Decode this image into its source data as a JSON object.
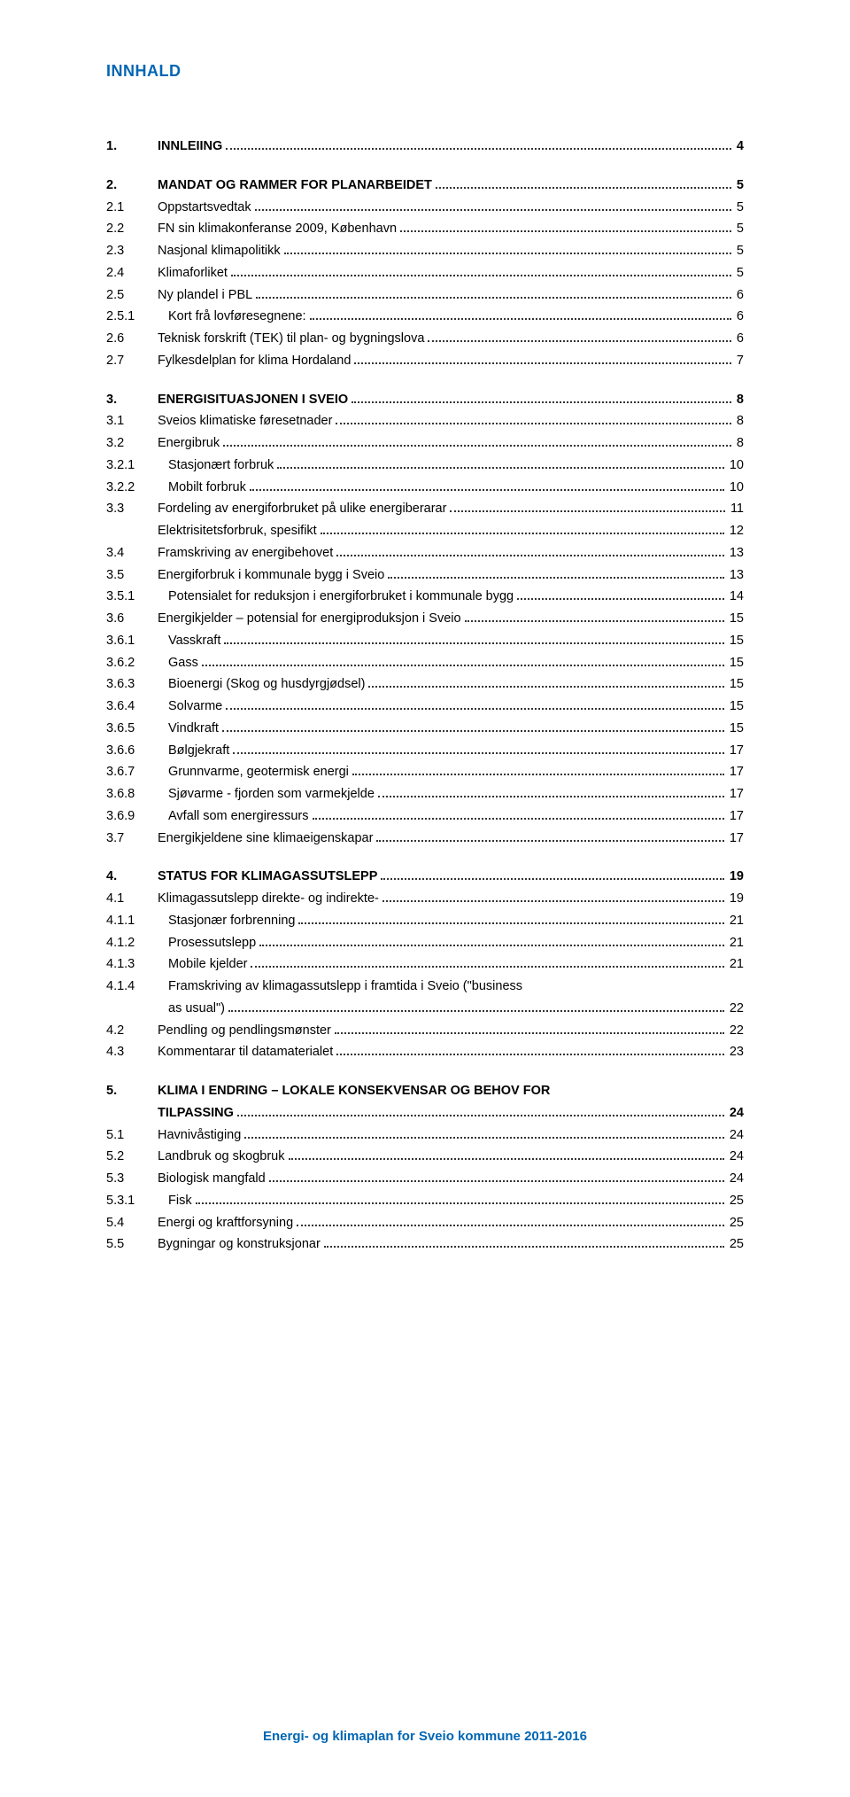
{
  "title": "INNHALD",
  "footer": "Energi- og klimaplan for Sveio kommune 2011-2016",
  "colors": {
    "accent": "#0066b3",
    "text": "#000000",
    "background": "#ffffff",
    "leader": "#333333"
  },
  "typography": {
    "title_fontsize_pt": 14,
    "body_fontsize_pt": 11,
    "footer_fontsize_pt": 11,
    "font_family": "Verdana"
  },
  "toc": [
    {
      "group": true,
      "items": [
        {
          "num": "1.",
          "title": "INNLEIING",
          "page": "4",
          "bold": true
        }
      ]
    },
    {
      "group": true,
      "items": [
        {
          "num": "2.",
          "title": "MANDAT OG RAMMER FOR PLANARBEIDET",
          "page": "5",
          "bold": true
        },
        {
          "num": "2.1",
          "title": "Oppstartsvedtak",
          "page": "5"
        },
        {
          "num": "2.2",
          "title": "FN sin klimakonferanse 2009, København",
          "page": "5"
        },
        {
          "num": "2.3",
          "title": "Nasjonal klimapolitikk",
          "page": "5"
        },
        {
          "num": "2.4",
          "title": "Klimaforliket",
          "page": "5"
        },
        {
          "num": "2.5",
          "title": "Ny plandel i PBL",
          "page": "6"
        },
        {
          "num": "2.5.1",
          "title": "Kort frå lovføresegnene:",
          "page": "6",
          "indent": true
        },
        {
          "num": "2.6",
          "title": "Teknisk forskrift (TEK) til plan- og bygningslova",
          "page": "6"
        },
        {
          "num": "2.7",
          "title": "Fylkesdelplan for klima Hordaland",
          "page": "7"
        }
      ]
    },
    {
      "group": true,
      "items": [
        {
          "num": "3.",
          "title": "ENERGISITUASJONEN I SVEIO",
          "page": "8",
          "bold": true
        },
        {
          "num": "3.1",
          "title": "Sveios klimatiske føresetnader",
          "page": "8"
        },
        {
          "num": "3.2",
          "title": "Energibruk",
          "page": "8"
        },
        {
          "num": "3.2.1",
          "title": "Stasjonært forbruk",
          "page": "10",
          "indent": true
        },
        {
          "num": "3.2.2",
          "title": "Mobilt forbruk",
          "page": "10",
          "indent": true
        },
        {
          "num": "3.3",
          "title": "Fordeling av energiforbruket på ulike energiberarar",
          "page": "11"
        },
        {
          "num": "",
          "title": "Elektrisitetsforbruk, spesifikt",
          "page": "12",
          "cont": true
        },
        {
          "num": "3.4",
          "title": "Framskriving av energibehovet",
          "page": "13"
        },
        {
          "num": "3.5",
          "title": "Energiforbruk i kommunale bygg i Sveio",
          "page": "13"
        },
        {
          "num": "3.5.1",
          "title": "Potensialet for reduksjon i energiforbruket i kommunale bygg",
          "page": "14",
          "indent": true
        },
        {
          "num": "3.6",
          "title": "Energikjelder – potensial for energiproduksjon i Sveio",
          "page": "15"
        },
        {
          "num": "3.6.1",
          "title": "Vasskraft",
          "page": "15",
          "indent": true
        },
        {
          "num": "3.6.2",
          "title": "Gass",
          "page": "15",
          "indent": true
        },
        {
          "num": "3.6.3",
          "title": "Bioenergi (Skog og husdyrgjødsel)",
          "page": "15",
          "indent": true
        },
        {
          "num": "3.6.4",
          "title": "Solvarme",
          "page": "15",
          "indent": true
        },
        {
          "num": "3.6.5",
          "title": "Vindkraft",
          "page": "15",
          "indent": true
        },
        {
          "num": "3.6.6",
          "title": "Bølgjekraft",
          "page": "17",
          "indent": true
        },
        {
          "num": "3.6.7",
          "title": "Grunnvarme, geotermisk energi",
          "page": "17",
          "indent": true
        },
        {
          "num": "3.6.8",
          "title": "Sjøvarme - fjorden som varmekjelde",
          "page": "17",
          "indent": true
        },
        {
          "num": "3.6.9",
          "title": "Avfall som energiressurs",
          "page": "17",
          "indent": true
        },
        {
          "num": "3.7",
          "title": "Energikjeldene sine klimaeigenskapar",
          "page": "17"
        }
      ]
    },
    {
      "group": true,
      "items": [
        {
          "num": "4.",
          "title": "STATUS FOR KLIMAGASSUTSLEPP",
          "page": "19",
          "bold": true
        },
        {
          "num": "4.1",
          "title": "Klimagassutslepp direkte- og indirekte-",
          "page": "19"
        },
        {
          "num": "4.1.1",
          "title": "Stasjonær forbrenning",
          "page": "21",
          "indent": true
        },
        {
          "num": "4.1.2",
          "title": "Prosessutslepp",
          "page": "21",
          "indent": true
        },
        {
          "num": "4.1.3",
          "title": "Mobile kjelder",
          "page": "21",
          "indent": true
        },
        {
          "num": "4.1.4",
          "title": "Framskriving av klimagassutslepp i framtida i Sveio (\"business",
          "indent": true,
          "noleader": true
        },
        {
          "num": "",
          "title": "as usual\")",
          "page": "22",
          "cont": true,
          "indent": true
        },
        {
          "num": "4.2",
          "title": "Pendling og pendlingsmønster",
          "page": "22"
        },
        {
          "num": "4.3",
          "title": "Kommentarar til datamaterialet",
          "page": "23"
        }
      ]
    },
    {
      "group": true,
      "items": [
        {
          "num": "5.",
          "title": "KLIMA I ENDRING – LOKALE KONSEKVENSAR OG BEHOV FOR",
          "bold": true,
          "noleader": true
        },
        {
          "num": "",
          "title": "TILPASSING",
          "page": "24",
          "bold": true,
          "cont": true
        },
        {
          "num": "5.1",
          "title": "Havnivåstiging",
          "page": "24"
        },
        {
          "num": "5.2",
          "title": "Landbruk og skogbruk",
          "page": "24"
        },
        {
          "num": "5.3",
          "title": "Biologisk mangfald",
          "page": "24"
        },
        {
          "num": "5.3.1",
          "title": "Fisk",
          "page": "25",
          "indent": true
        },
        {
          "num": "5.4",
          "title": "Energi og kraftforsyning",
          "page": "25"
        },
        {
          "num": "5.5",
          "title": "Bygningar og konstruksjonar",
          "page": "25"
        }
      ]
    }
  ]
}
